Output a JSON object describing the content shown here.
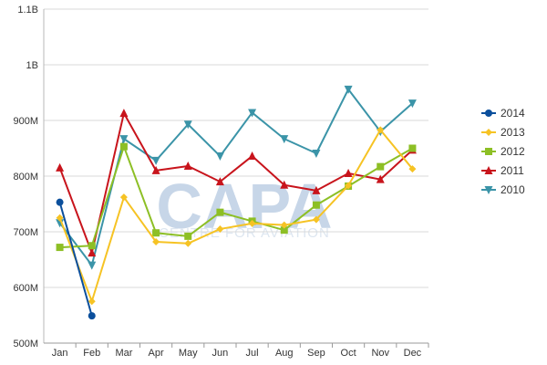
{
  "chart_data": {
    "type": "line",
    "categories": [
      "Jan",
      "Feb",
      "Mar",
      "Apr",
      "May",
      "Jun",
      "Jul",
      "Aug",
      "Sep",
      "Oct",
      "Nov",
      "Dec"
    ],
    "y_ticks": [
      {
        "value": 500,
        "label": "500M"
      },
      {
        "value": 600,
        "label": "600M"
      },
      {
        "value": 700,
        "label": "700M"
      },
      {
        "value": 800,
        "label": "800M"
      },
      {
        "value": 900,
        "label": "900M"
      },
      {
        "value": 1000,
        "label": "1B"
      },
      {
        "value": 1100,
        "label": "1.1B"
      }
    ],
    "ylim": [
      500,
      1100
    ],
    "y_unit": "millions",
    "grid": "horizontal",
    "legend_position": "right",
    "series": [
      {
        "name": "2014",
        "color": "#0b4f9c",
        "marker": "circle",
        "values": [
          753,
          549,
          null,
          null,
          null,
          null,
          null,
          null,
          null,
          null,
          null,
          null
        ]
      },
      {
        "name": "2013",
        "color": "#f6c324",
        "marker": "diamond",
        "values": [
          725,
          575,
          762,
          682,
          679,
          705,
          715,
          712,
          722,
          783,
          883,
          813
        ]
      },
      {
        "name": "2012",
        "color": "#8dbf25",
        "marker": "square",
        "values": [
          672,
          675,
          853,
          698,
          692,
          735,
          719,
          703,
          748,
          782,
          817,
          850
        ]
      },
      {
        "name": "2011",
        "color": "#c8141c",
        "marker": "triangle-up",
        "values": [
          815,
          662,
          913,
          810,
          818,
          790,
          836,
          784,
          774,
          805,
          794,
          847
        ]
      },
      {
        "name": "2010",
        "color": "#3b94a8",
        "marker": "triangle-down",
        "values": [
          716,
          640,
          867,
          828,
          893,
          836,
          914,
          867,
          841,
          956,
          880,
          931
        ]
      }
    ]
  },
  "watermark": {
    "logo": "CAPA",
    "tagline": "CENTRE FOR AVIATION"
  }
}
